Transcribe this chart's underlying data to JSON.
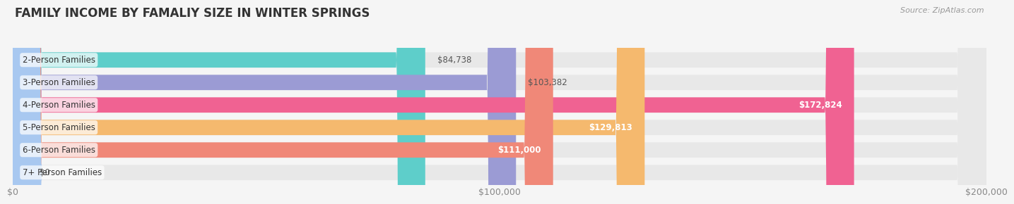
{
  "title": "FAMILY INCOME BY FAMALIY SIZE IN WINTER SPRINGS",
  "source": "Source: ZipAtlas.com",
  "categories": [
    "2-Person Families",
    "3-Person Families",
    "4-Person Families",
    "5-Person Families",
    "6-Person Families",
    "7+ Person Families"
  ],
  "values": [
    84738,
    103382,
    172824,
    129813,
    111000,
    0
  ],
  "bar_colors": [
    "#5ececa",
    "#9b9bd4",
    "#f06292",
    "#f5b96e",
    "#f08878",
    "#a8c8f0"
  ],
  "xlim": [
    0,
    200000
  ],
  "xticks": [
    0,
    100000,
    200000
  ],
  "xtick_labels": [
    "$0",
    "$100,000",
    "$200,000"
  ],
  "background_color": "#f5f5f5",
  "bar_bg_color": "#e8e8e8",
  "title_fontsize": 12,
  "tick_fontsize": 9,
  "label_fontsize": 8.5,
  "value_fontsize": 8.5,
  "source_fontsize": 8
}
